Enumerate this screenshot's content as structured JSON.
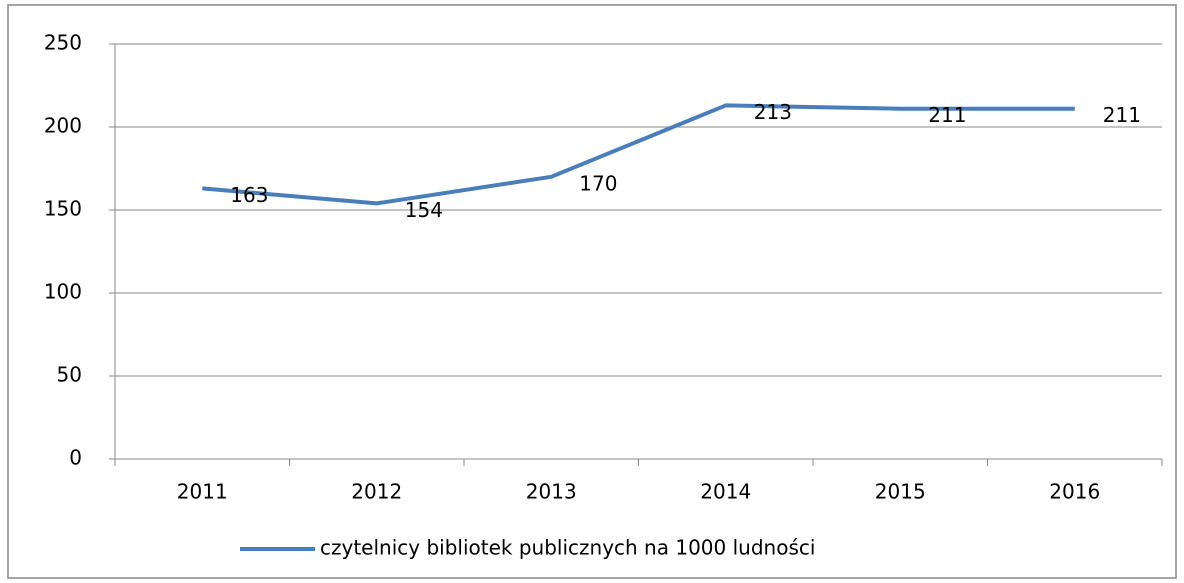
{
  "chart_data": {
    "type": "line",
    "categories": [
      "2011",
      "2012",
      "2013",
      "2014",
      "2015",
      "2016"
    ],
    "series": [
      {
        "name": "czytelnicy bibliotek publicznych na 1000 ludności",
        "color": "#4a7ebb",
        "values": [
          163,
          154,
          170,
          213,
          211,
          211
        ]
      }
    ],
    "ylim": [
      0,
      250
    ],
    "yticks": [
      0,
      50,
      100,
      150,
      200,
      250
    ],
    "grid": true,
    "legend": "bottom"
  }
}
